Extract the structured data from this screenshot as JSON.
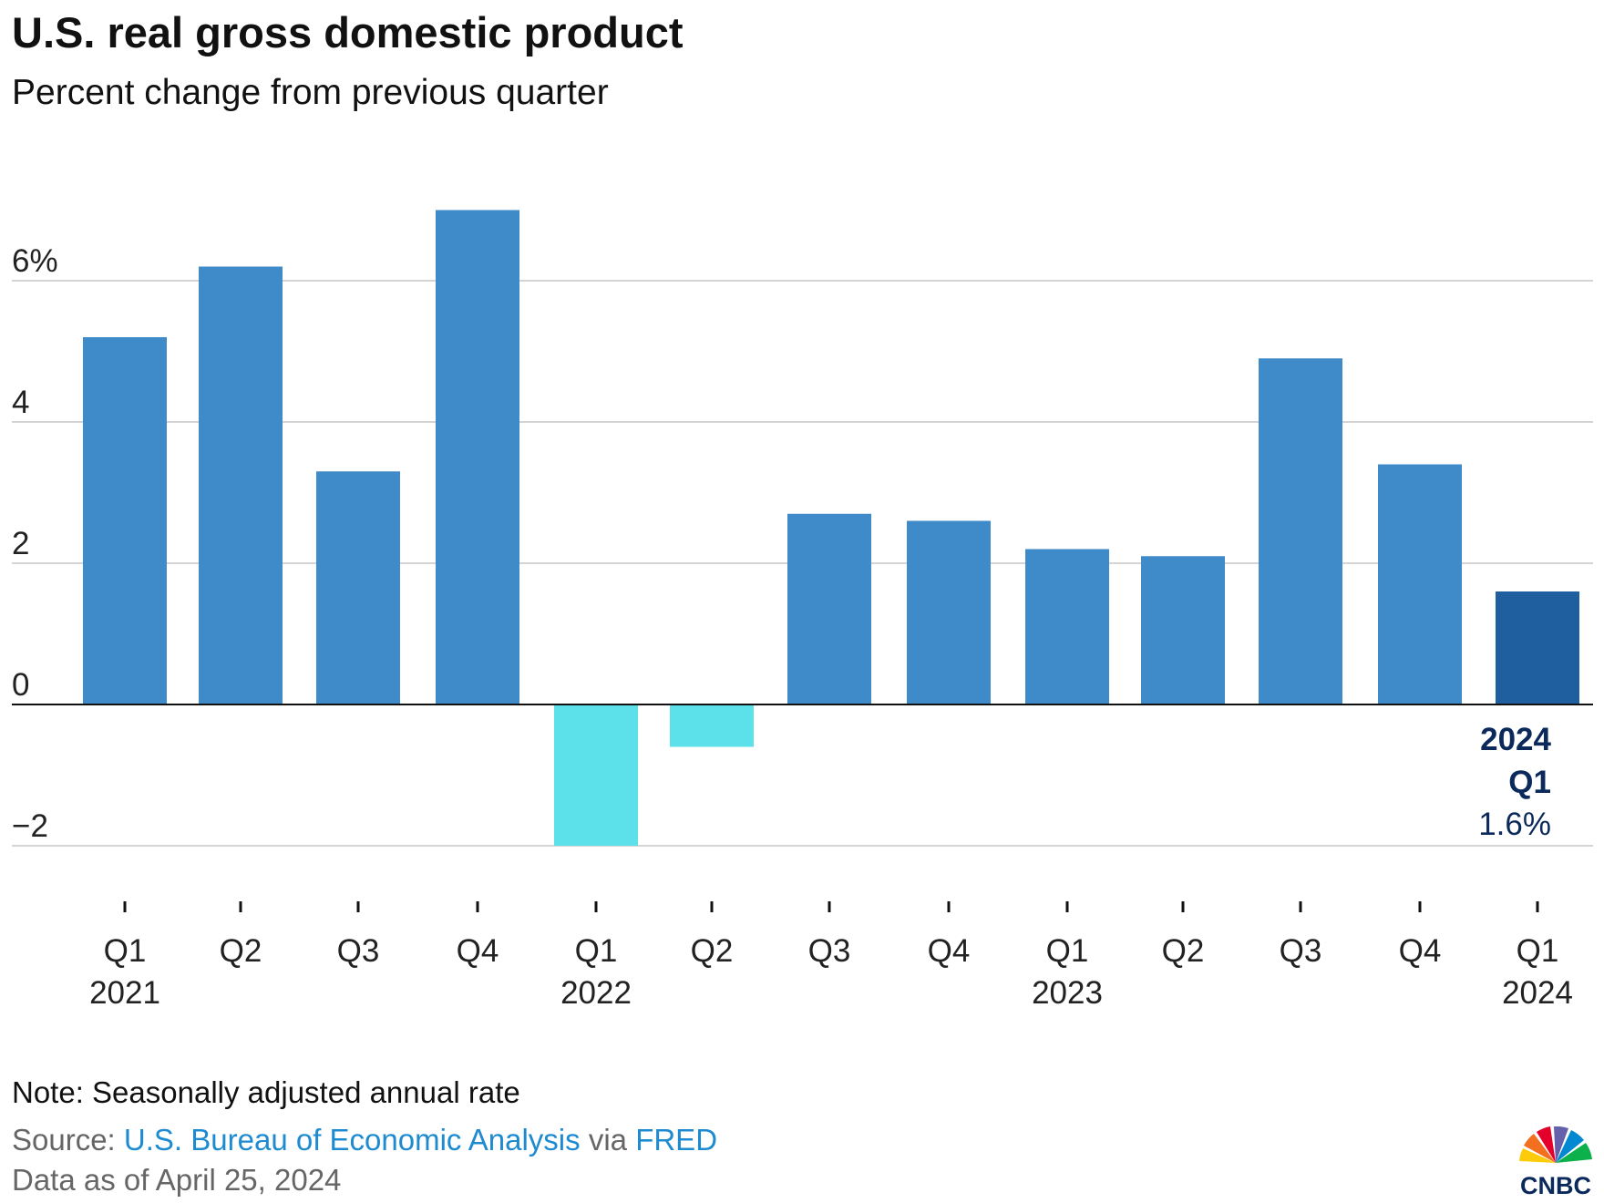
{
  "title": "U.S. real gross domestic product",
  "subtitle": "Percent change from previous quarter",
  "chart_data": {
    "type": "bar",
    "title": "U.S. real gross domestic product",
    "subtitle": "Percent change from previous quarter",
    "xlabel": "",
    "ylabel": "Percent change",
    "ylim": [
      -2,
      7.2
    ],
    "yticks": [
      -2,
      0,
      2,
      4,
      6
    ],
    "ytick_labels": [
      "−2",
      "0",
      "2",
      "4",
      "6%"
    ],
    "grid": true,
    "categories": [
      "Q1 2021",
      "Q2 2021",
      "Q3 2021",
      "Q4 2021",
      "Q1 2022",
      "Q2 2022",
      "Q3 2022",
      "Q4 2022",
      "Q1 2023",
      "Q2 2023",
      "Q3 2023",
      "Q4 2023",
      "Q1 2024"
    ],
    "quarter_labels": [
      "Q1",
      "Q2",
      "Q3",
      "Q4",
      "Q1",
      "Q2",
      "Q3",
      "Q4",
      "Q1",
      "Q2",
      "Q3",
      "Q4",
      "Q1"
    ],
    "year_labels": [
      "2021",
      "",
      "",
      "",
      "2022",
      "",
      "",
      "",
      "2023",
      "",
      "",
      "",
      "2024"
    ],
    "values": [
      5.2,
      6.2,
      3.3,
      7.0,
      -2.0,
      -0.6,
      2.7,
      2.6,
      2.2,
      2.1,
      4.9,
      3.4,
      1.6
    ],
    "colors": {
      "positive": "#3f8ac9",
      "negative": "#5ce0ea",
      "highlight": "#1f5f9f"
    },
    "annotation": {
      "year": "2024",
      "quarter": "Q1",
      "value": "1.6%"
    }
  },
  "footer": {
    "note": "Note: Seasonally adjusted annual rate",
    "source_prefix": "Source: ",
    "source_link1": "U.S. Bureau of Economic Analysis",
    "source_via": " via ",
    "source_link2": "FRED",
    "data_as_of": "Data as of April 25, 2024"
  },
  "logo": {
    "text": "CNBC"
  }
}
